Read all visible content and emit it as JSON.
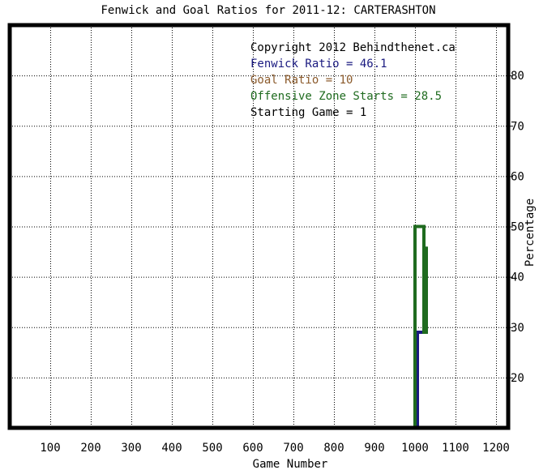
{
  "chart_data": {
    "type": "line",
    "title": "Fenwick and Goal Ratios for 2011-12: CARTERASHTON",
    "xlabel": "Game Number",
    "ylabel": "Percentage",
    "xlim": [
      0,
      1230
    ],
    "ylim": [
      10,
      90
    ],
    "x_ticks": [
      100,
      200,
      300,
      400,
      500,
      600,
      700,
      800,
      900,
      1000,
      1100,
      1200
    ],
    "y_ticks": [
      20,
      30,
      40,
      50,
      60,
      70,
      80
    ],
    "grid": true,
    "legend_position": "top-right",
    "annotations": [
      {
        "text": "Copyright 2012 Behindthenet.ca",
        "color": "#000000"
      },
      {
        "text": "Fenwick Ratio = 46.1",
        "color": "#1a1a80"
      },
      {
        "text": "Goal Ratio = 10",
        "color": "#8b5a2b"
      },
      {
        "text": "Offensive Zone Starts = 28.5",
        "color": "#1f6b1f"
      },
      {
        "text": "Starting Game = 1",
        "color": "#000000"
      }
    ],
    "series": [
      {
        "name": "Fenwick Ratio",
        "color": "#1a1a80",
        "points": [
          [
            1006,
            10
          ],
          [
            1006,
            29
          ],
          [
            1026,
            29
          ],
          [
            1026,
            46
          ]
        ]
      },
      {
        "name": "Offensive Zone Starts",
        "color": "#1f6b1f",
        "points": [
          [
            1000,
            10
          ],
          [
            1000,
            50
          ],
          [
            1022,
            50
          ],
          [
            1022,
            29
          ],
          [
            1028,
            29
          ],
          [
            1028,
            46
          ]
        ]
      }
    ]
  }
}
